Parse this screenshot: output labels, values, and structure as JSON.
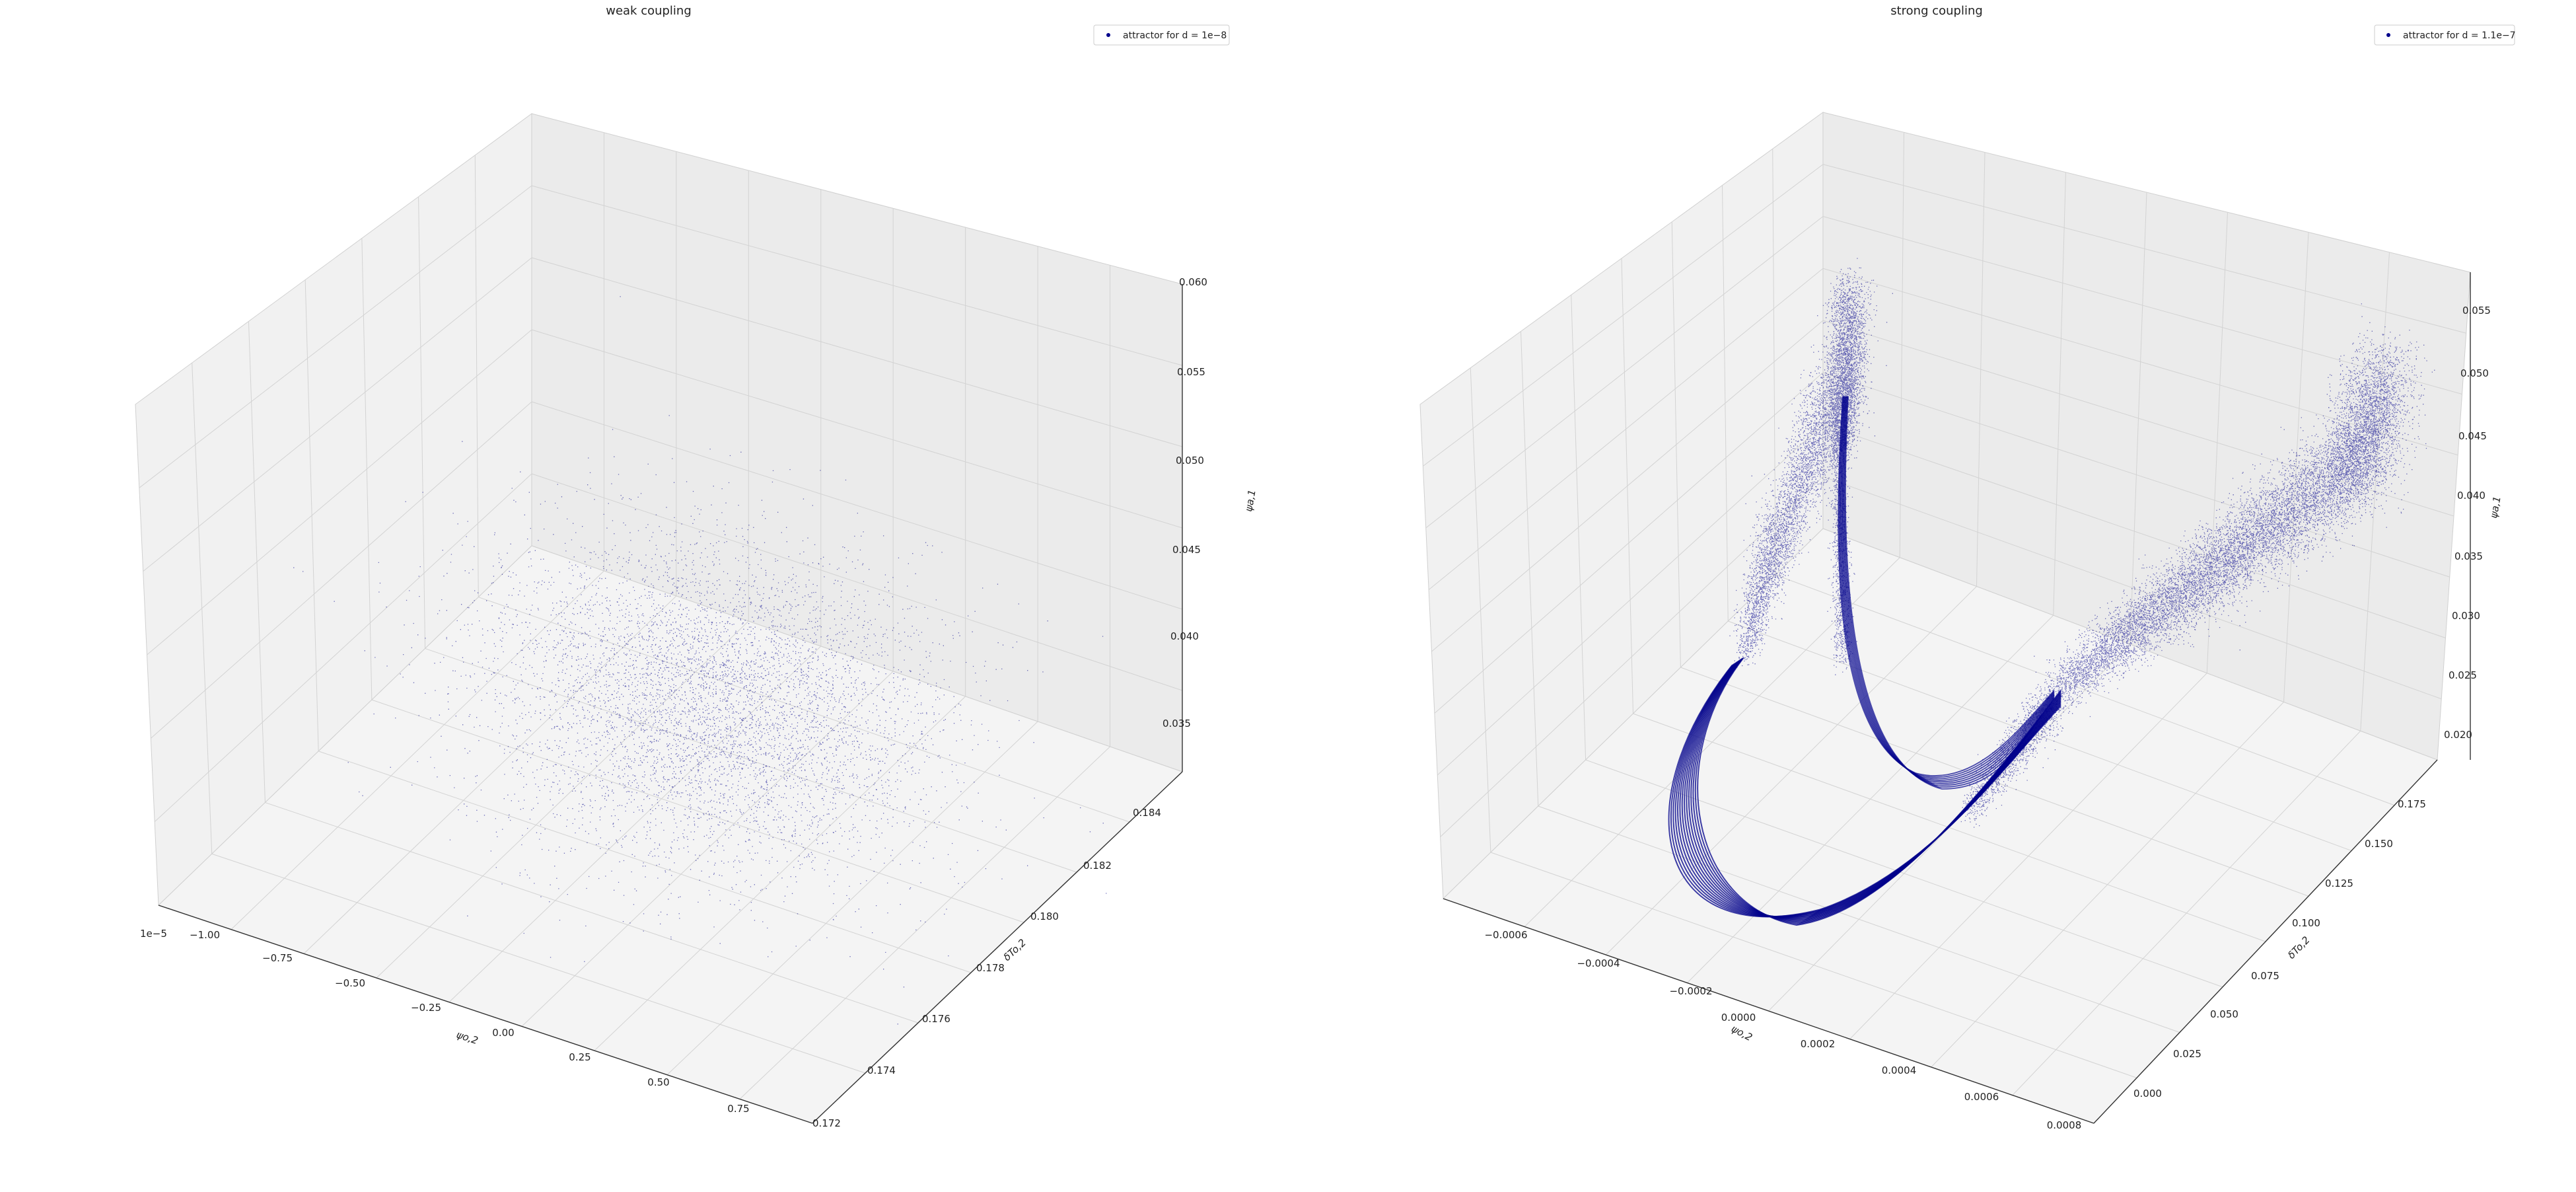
{
  "chart_data": [
    {
      "type": "scatter",
      "projection": "3d",
      "title": "weak coupling",
      "xlabel": "ψo,2",
      "ylabel": "δTo,2",
      "zlabel": "ψa,1",
      "x_offset_text": "1e−5",
      "x_ticks": [
        "−1.00",
        "−0.75",
        "−0.50",
        "−0.25",
        "0.00",
        "0.25",
        "0.50",
        "0.75"
      ],
      "y_ticks": [
        "0.172",
        "0.174",
        "0.176",
        "0.178",
        "0.180",
        "0.182",
        "0.184"
      ],
      "z_ticks": [
        "0.035",
        "0.040",
        "0.045",
        "0.050",
        "0.055",
        "0.060"
      ],
      "xlim": [
        -1.15e-05,
        9e-06
      ],
      "ylim": [
        0.172,
        0.185
      ],
      "zlim": [
        0.033,
        0.06
      ],
      "grid": true,
      "legend": {
        "label": "attractor for d = 1e−8",
        "position": "top-right"
      },
      "series": [
        {
          "label": "attractor for d = 1e−8",
          "color": "#00008b",
          "shape": "gaussian-cloud",
          "center": {
            "x": -5e-07,
            "y": 0.179,
            "z": 0.04
          },
          "spread": {
            "x": 3.2e-06,
            "y": 0.0016,
            "z": 0.0035
          }
        }
      ]
    },
    {
      "type": "scatter",
      "projection": "3d",
      "title": "strong coupling",
      "xlabel": "ψo,2",
      "ylabel": "δTo,2",
      "zlabel": "ψa,1",
      "x_ticks": [
        "−0.0006",
        "−0.0004",
        "−0.0002",
        "0.0000",
        "0.0002",
        "0.0004",
        "0.0006",
        "0.0008"
      ],
      "y_ticks": [
        "0.000",
        "0.025",
        "0.050",
        "0.075",
        "0.100",
        "0.125",
        "0.150",
        "0.175"
      ],
      "z_ticks": [
        "0.020",
        "0.025",
        "0.030",
        "0.035",
        "0.040",
        "0.045",
        "0.050",
        "0.055"
      ],
      "xlim": [
        -0.00075,
        0.0008
      ],
      "ylim": [
        -0.01,
        0.19
      ],
      "zlim": [
        0.018,
        0.057
      ],
      "grid": true,
      "legend": {
        "label": "attractor for d = 1.1e−7",
        "position": "top-right"
      },
      "series": [
        {
          "label": "attractor for d = 1.1e−7",
          "color": "#00008b",
          "shape": "v-shaped-attractor",
          "branches": [
            {
              "from": {
                "x": 5e-05,
                "y": 0.11,
                "z": 0.028
              },
              "to": {
                "x": -0.0003,
                "y": 0.17,
                "z": 0.048
              }
            },
            {
              "from": {
                "x": 5e-05,
                "y": 0.11,
                "z": 0.028
              },
              "to": {
                "x": 0.0005,
                "y": 0.15,
                "z": 0.043
              }
            }
          ]
        }
      ]
    }
  ]
}
